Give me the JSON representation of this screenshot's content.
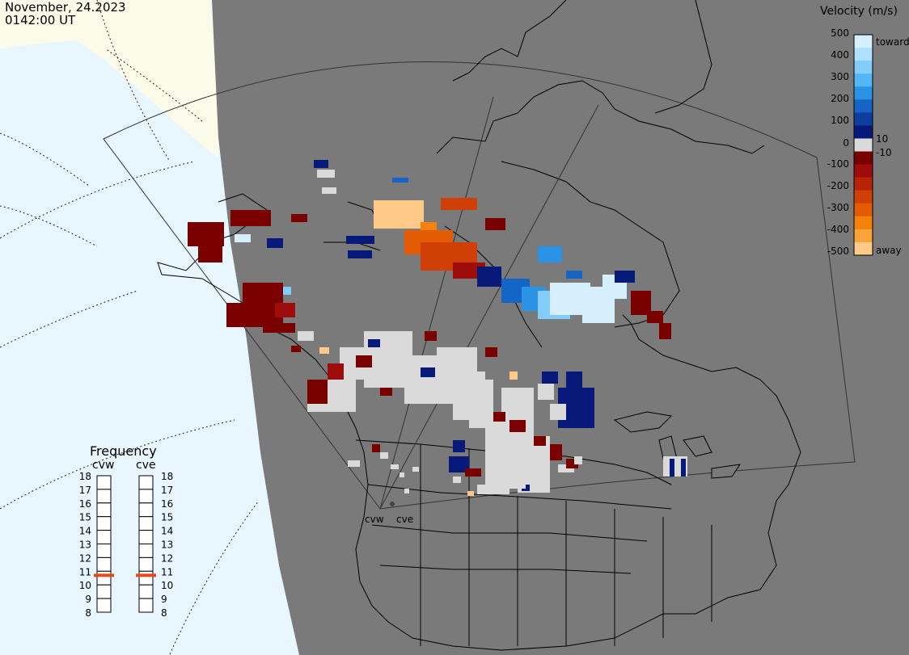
{
  "header": {
    "date": "November, 24.2023",
    "time": "0142:00 UT"
  },
  "velocity_scale": {
    "title": "Velocity (m/s)",
    "ticks": [
      "500",
      "400",
      "300",
      "200",
      "100",
      "0",
      "-100",
      "-200",
      "-300",
      "-400",
      "-500"
    ],
    "extra_ticks": [
      "10",
      "-10"
    ],
    "toward_label": "toward",
    "away_label": "away",
    "colors": [
      "#d6efff",
      "#aee0ff",
      "#82cdfa",
      "#55b6f5",
      "#2a93e6",
      "#1565c6",
      "#0d3d9e",
      "#071a7a",
      "#dadada",
      "#7a0000",
      "#9e0c0c",
      "#b82208",
      "#cf3f06",
      "#e35c04",
      "#f3810b",
      "#fba238",
      "#ffc988"
    ]
  },
  "frequency_panel": {
    "title": "Frequency",
    "radars": [
      {
        "name": "cvw",
        "value_mhz": 10.7
      },
      {
        "name": "cve",
        "value_mhz": 10.7
      }
    ],
    "scale": [
      "18",
      "17",
      "16",
      "15",
      "14",
      "13",
      "12",
      "11",
      "10",
      "9",
      "8"
    ],
    "marker_color": "#e34a1e"
  },
  "map": {
    "land_color": "#7a7a7a",
    "daylight_ocean_color": "#e8f6ff",
    "daylight_land_color": "#fbfbe9",
    "site_labels": [
      "cvw",
      "cve"
    ]
  }
}
